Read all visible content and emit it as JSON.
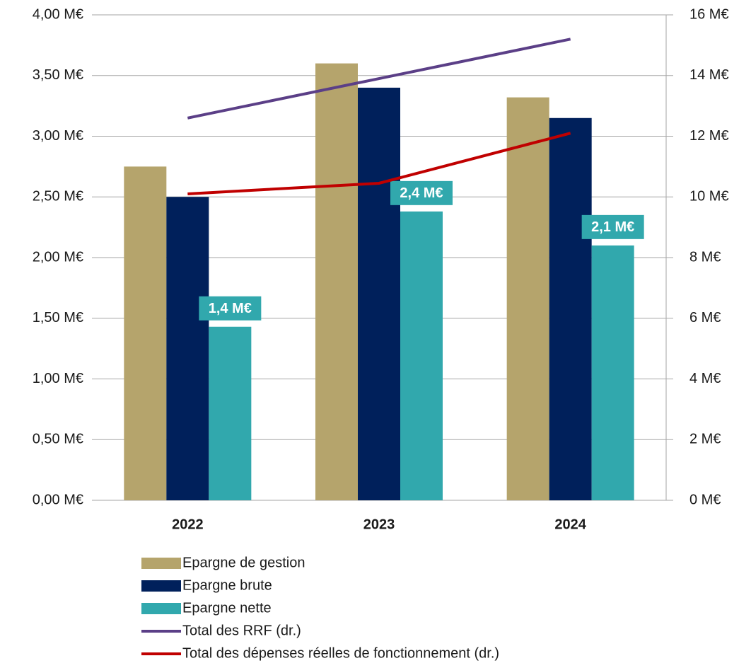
{
  "chart_data": {
    "type": "bar",
    "categories": [
      "2022",
      "2023",
      "2024"
    ],
    "series": [
      {
        "name": "Epargne de gestion",
        "type": "bar",
        "color": "#b5a46c",
        "values": [
          2.75,
          3.6,
          3.32
        ]
      },
      {
        "name": "Epargne brute",
        "type": "bar",
        "color": "#00205b",
        "values": [
          2.5,
          3.4,
          3.15
        ]
      },
      {
        "name": "Epargne nette",
        "type": "bar",
        "color": "#31a8ad",
        "values": [
          1.43,
          2.38,
          2.1
        ],
        "value_labels": [
          "1,4 M€",
          "2,4 M€",
          "2,1 M€"
        ]
      },
      {
        "name": "Total des RRF (dr.)",
        "type": "line",
        "axis": "y2",
        "color": "#5b3f87",
        "values": [
          12.6,
          13.9,
          15.2
        ]
      },
      {
        "name": "Total des dépenses réelles de fonctionnement (dr.)",
        "type": "line",
        "axis": "y2",
        "color": "#c00000",
        "values": [
          10.1,
          10.45,
          12.1
        ]
      }
    ],
    "ylim": [
      0,
      4
    ],
    "yticks": [
      {
        "value": 0,
        "label": "0,00 M€"
      },
      {
        "value": 0.5,
        "label": "0,50 M€"
      },
      {
        "value": 1,
        "label": "1,00 M€"
      },
      {
        "value": 1.5,
        "label": "1,50 M€"
      },
      {
        "value": 2,
        "label": "2,00 M€"
      },
      {
        "value": 2.5,
        "label": "2,50 M€"
      },
      {
        "value": 3,
        "label": "3,00 M€"
      },
      {
        "value": 3.5,
        "label": "3,50 M€"
      },
      {
        "value": 4,
        "label": "4,00 M€"
      }
    ],
    "y2lim": [
      0,
      16
    ],
    "y2ticks": [
      {
        "value": 0,
        "label": "0 M€"
      },
      {
        "value": 2,
        "label": "2 M€"
      },
      {
        "value": 4,
        "label": "4 M€"
      },
      {
        "value": 6,
        "label": "6 M€"
      },
      {
        "value": 8,
        "label": "8 M€"
      },
      {
        "value": 10,
        "label": "10 M€"
      },
      {
        "value": 12,
        "label": "12 M€"
      },
      {
        "value": 14,
        "label": "14 M€"
      },
      {
        "value": 16,
        "label": "16 M€"
      }
    ],
    "grid": true,
    "legend": "bottom"
  }
}
